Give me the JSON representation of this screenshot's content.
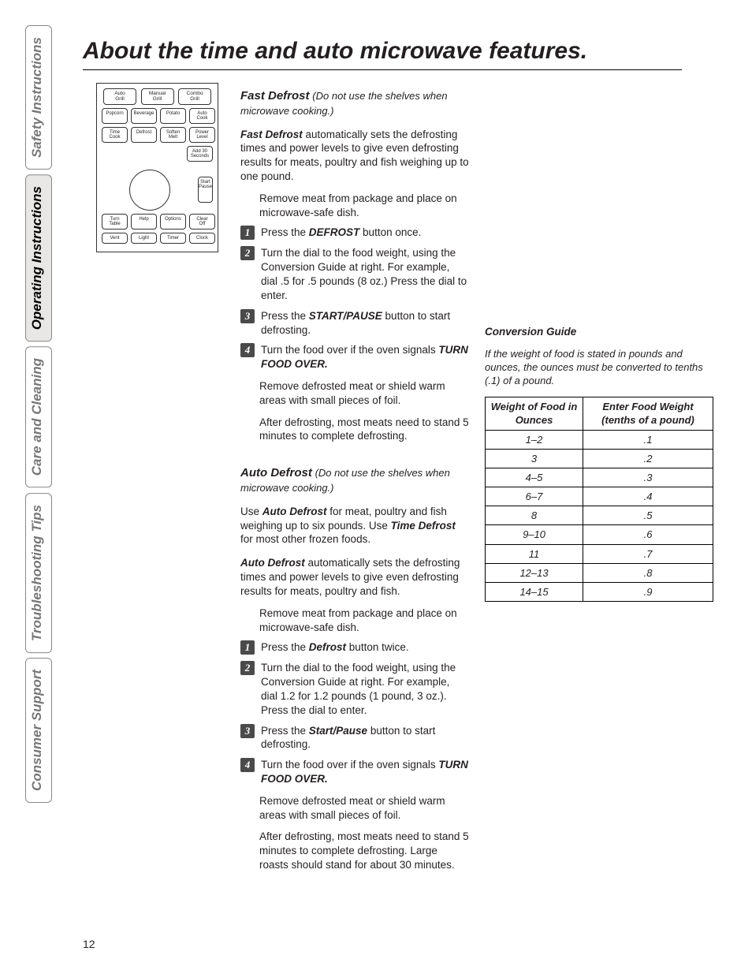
{
  "page_number": "12",
  "title": "About the time and auto microwave features.",
  "side_tabs": [
    {
      "label": "Safety Instructions",
      "active": false
    },
    {
      "label": "Operating Instructions",
      "active": true
    },
    {
      "label": "Care and Cleaning",
      "active": false
    },
    {
      "label": "Troubleshooting Tips",
      "active": false
    },
    {
      "label": "Consumer Support",
      "active": false
    }
  ],
  "panel_buttons": {
    "row1": [
      "Auto\nGrill",
      "Manual\nGrill",
      "Combo\nGrill"
    ],
    "row2": [
      "Popcorn",
      "Beverage",
      "Potato",
      "Auto\nCook"
    ],
    "row3": [
      "Time\nCook",
      "Defrost",
      "Soften\nMelt",
      "Power\nLevel"
    ],
    "add30": "Add 30\nSeconds",
    "start": "Start\nPause",
    "row5": [
      "Turn\nTable",
      "Help",
      "Options",
      "Clear\nOff"
    ],
    "row6": [
      "Vent",
      "Light",
      "Timer",
      "Clock"
    ]
  },
  "fast_defrost": {
    "heading": "Fast Defrost",
    "heading_note": "(Do not use the shelves when microwave cooking.)",
    "intro_bold": "Fast Defrost",
    "intro_rest": " automatically sets the defrosting times and power levels to give even defrosting results for meats, poultry and fish weighing up to one pound.",
    "pre_step": "Remove meat from package and place on microwave-safe dish.",
    "step1_a": "Press the ",
    "step1_b": "DEFROST",
    "step1_c": " button once.",
    "step2": "Turn the dial to the food weight, using the Conversion Guide at right. For example, dial .5 for .5 pounds (8 oz.) Press the dial to enter.",
    "step3_a": "Press the ",
    "step3_b": "START/PAUSE",
    "step3_c": " button to start defrosting.",
    "step4_a": "Turn the food over if the oven signals ",
    "step4_b": "TURN FOOD OVER.",
    "post1": "Remove defrosted meat or shield warm areas with small pieces of foil.",
    "post2": "After defrosting, most meats need to stand 5 minutes to complete defrosting."
  },
  "auto_defrost": {
    "heading": "Auto Defrost",
    "heading_note": "(Do not use the shelves when microwave cooking.)",
    "intro1_a": "Use ",
    "intro1_b": "Auto Defrost",
    "intro1_c": " for meat, poultry and fish weighing up to six pounds. Use ",
    "intro1_d": "Time Defrost",
    "intro1_e": " for most other frozen foods.",
    "intro2_a": "Auto Defrost",
    "intro2_b": " automatically sets the defrosting times and power levels to give even defrosting results for meats, poultry and fish.",
    "pre_step": "Remove meat from package and place on microwave-safe dish.",
    "step1_a": "Press the ",
    "step1_b": "Defrost",
    "step1_c": " button twice.",
    "step2": "Turn the dial to the food weight, using the Conversion Guide at right. For example, dial 1.2 for 1.2 pounds (1 pound, 3 oz.). Press the dial to enter.",
    "step3_a": "Press the ",
    "step3_b": "Start/Pause",
    "step3_c": " button to start defrosting.",
    "step4_a": "Turn the food over if the oven signals ",
    "step4_b": "TURN FOOD OVER.",
    "post1": "Remove defrosted meat or shield warm areas with small pieces of foil.",
    "post2": "After defrosting, most meats need to stand 5 minutes to complete defrosting. Large roasts should stand for about 30 minutes."
  },
  "conversion": {
    "title": "Conversion Guide",
    "note": "If the weight of food is stated in pounds and ounces, the ounces must be converted to tenths (.1) of a pound.",
    "col1": "Weight of Food in Ounces",
    "col2": "Enter Food Weight (tenths of a pound)",
    "rows": [
      [
        "1–2",
        ".1"
      ],
      [
        "3",
        ".2"
      ],
      [
        "4–5",
        ".3"
      ],
      [
        "6–7",
        ".4"
      ],
      [
        "8",
        ".5"
      ],
      [
        "9–10",
        ".6"
      ],
      [
        "11",
        ".7"
      ],
      [
        "12–13",
        ".8"
      ],
      [
        "14–15",
        ".9"
      ]
    ]
  },
  "colors": {
    "text": "#231f20",
    "tab_active_bg": "#e9e7e5",
    "tab_inactive_text": "#777777",
    "step_badge_bg": "#4a4a4a",
    "border": "#000000"
  },
  "typography": {
    "title_fontsize": 30,
    "body_fontsize": 13.5,
    "tab_fontsize": 17,
    "table_fontsize": 13
  }
}
